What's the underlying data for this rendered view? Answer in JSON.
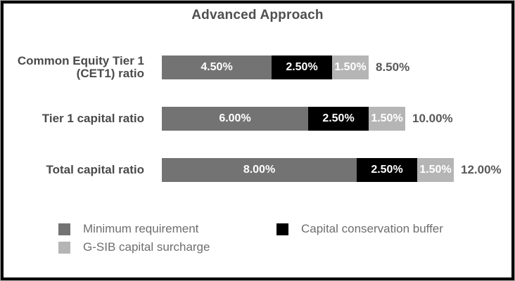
{
  "chart_data": {
    "type": "bar",
    "orientation": "horizontal-stacked",
    "title": "Advanced Approach",
    "categories": [
      "Common Equity Tier 1 (CET1) ratio",
      "Tier 1 capital ratio",
      "Total capital ratio"
    ],
    "series": [
      {
        "name": "Minimum requirement",
        "color": "#737373",
        "values": [
          4.5,
          6.0,
          8.0
        ]
      },
      {
        "name": "Capital conservation buffer",
        "color": "#000000",
        "values": [
          2.5,
          2.5,
          2.5
        ]
      },
      {
        "name": "G-SIB capital surcharge",
        "color": "#b5b5b5",
        "values": [
          1.5,
          1.5,
          1.5
        ]
      }
    ],
    "segment_labels": [
      [
        "4.50%",
        "2.50%",
        "1.50%"
      ],
      [
        "6.00%",
        "2.50%",
        "1.50%"
      ],
      [
        "8.00%",
        "2.50%",
        "1.50%"
      ]
    ],
    "totals": [
      "8.50%",
      "10.00%",
      "12.00%"
    ],
    "xlim": [
      0,
      12
    ],
    "grid": false,
    "legend_position": "bottom"
  }
}
